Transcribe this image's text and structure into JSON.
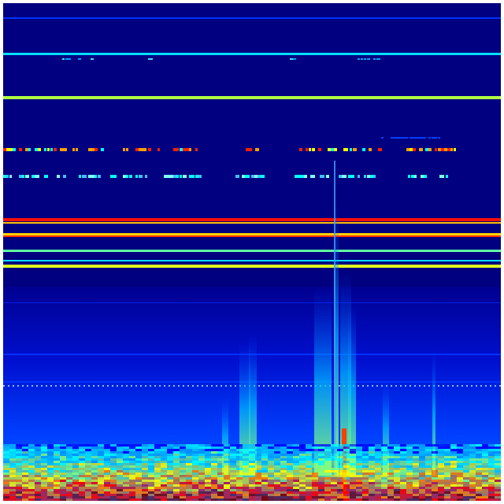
{
  "spectrogram": {
    "colormap": [
      "#00007f",
      "#0000ff",
      "#00bfff",
      "#00ffff",
      "#7fff7f",
      "#ffff00",
      "#ff7f00",
      "#ff0000",
      "#7f0000"
    ],
    "background_color": "#000080"
  }
}
